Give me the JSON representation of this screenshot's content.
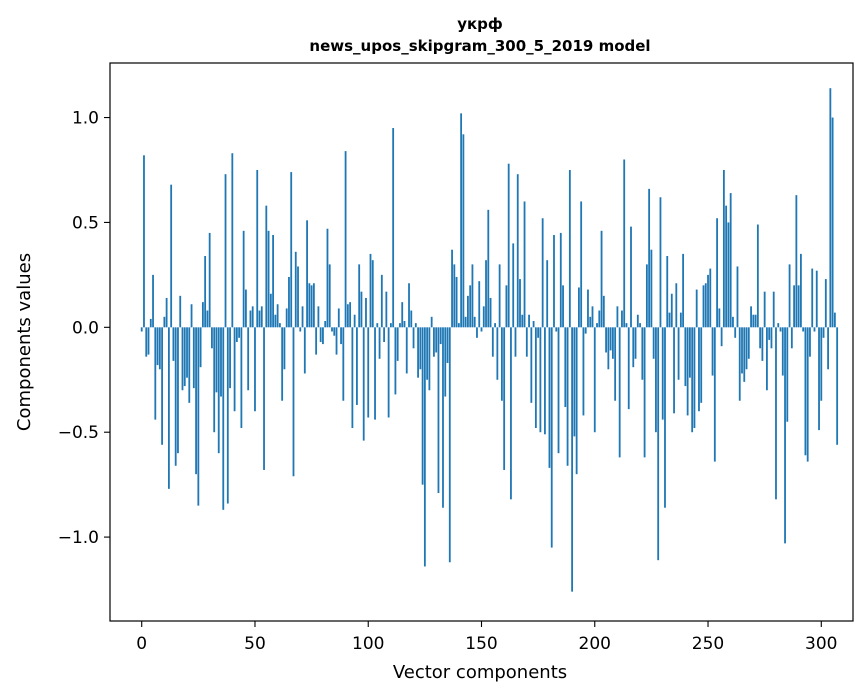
{
  "chart_data": {
    "type": "bar",
    "title": "укрф",
    "subtitle": "news_upos_skipgram_300_5_2019 model",
    "xlabel": "Vector components",
    "ylabel": "Components values",
    "xlim": [
      -14,
      314
    ],
    "ylim": [
      -1.4,
      1.26
    ],
    "xticks": [
      0,
      50,
      100,
      150,
      200,
      250,
      300
    ],
    "xtick_labels": [
      "0",
      "50",
      "100",
      "150",
      "200",
      "250",
      "300"
    ],
    "yticks": [
      -1.0,
      -0.5,
      0.0,
      0.5,
      1.0
    ],
    "ytick_labels": [
      "−1.0",
      "−0.5",
      "0.0",
      "0.5",
      "1.0"
    ],
    "bar_color": "#1f77b4",
    "values": [
      -0.02,
      0.82,
      -0.14,
      -0.13,
      0.04,
      0.25,
      -0.44,
      -0.18,
      -0.2,
      -0.56,
      0.05,
      0.14,
      -0.77,
      0.68,
      -0.16,
      -0.66,
      -0.6,
      0.15,
      -0.3,
      -0.28,
      -0.24,
      -0.36,
      0.11,
      -0.29,
      -0.7,
      -0.85,
      -0.19,
      0.12,
      0.34,
      0.08,
      0.45,
      -0.1,
      -0.5,
      -0.31,
      -0.6,
      -0.33,
      -0.87,
      0.73,
      -0.84,
      -0.29,
      0.83,
      -0.4,
      -0.07,
      -0.05,
      -0.48,
      0.46,
      0.18,
      -0.3,
      0.08,
      0.1,
      -0.4,
      0.75,
      0.08,
      0.1,
      -0.68,
      0.58,
      0.46,
      0.16,
      0.44,
      0.06,
      0.11,
      0.02,
      -0.35,
      -0.2,
      0.09,
      0.24,
      0.74,
      -0.71,
      0.36,
      0.29,
      -0.02,
      0.1,
      -0.22,
      0.51,
      0.21,
      0.2,
      0.21,
      -0.13,
      0.1,
      -0.07,
      -0.08,
      0.03,
      0.47,
      0.3,
      -0.02,
      -0.04,
      -0.13,
      0.09,
      -0.08,
      -0.35,
      0.84,
      0.11,
      0.12,
      -0.48,
      0.06,
      -0.37,
      0.3,
      0.17,
      -0.54,
      0.14,
      -0.43,
      0.35,
      0.32,
      -0.44,
      0.02,
      -0.15,
      0.25,
      -0.07,
      0.17,
      -0.43,
      0.02,
      0.95,
      -0.32,
      -0.16,
      0.02,
      0.12,
      0.03,
      -0.22,
      0.21,
      0.08,
      -0.1,
      0.02,
      -0.24,
      -0.2,
      -0.75,
      -1.14,
      -0.25,
      -0.3,
      0.05,
      -0.14,
      -0.12,
      -0.79,
      -0.08,
      -0.86,
      -0.33,
      -0.17,
      -1.12,
      0.37,
      0.3,
      0.24,
      0.02,
      1.02,
      0.92,
      0.05,
      0.15,
      0.2,
      0.3,
      0.05,
      -0.05,
      0.22,
      -0.02,
      0.1,
      0.32,
      0.56,
      0.14,
      -0.14,
      0.02,
      -0.25,
      0.3,
      -0.35,
      -0.68,
      0.2,
      0.78,
      -0.82,
      0.4,
      -0.14,
      0.73,
      0.23,
      0.06,
      0.6,
      -0.14,
      0.06,
      -0.36,
      0.03,
      -0.48,
      -0.05,
      -0.5,
      0.52,
      -0.51,
      0.32,
      -0.67,
      -1.05,
      0.44,
      -0.02,
      -0.6,
      0.45,
      0.2,
      -0.38,
      -0.66,
      0.75,
      -1.26,
      -0.52,
      -0.7,
      0.19,
      0.6,
      -0.42,
      -0.03,
      0.18,
      0.05,
      0.1,
      -0.5,
      0.02,
      0.08,
      0.46,
      0.15,
      -0.12,
      -0.2,
      -0.11,
      -0.15,
      -0.35,
      0.1,
      -0.62,
      0.08,
      0.8,
      0.02,
      -0.39,
      0.48,
      -0.19,
      -0.15,
      0.06,
      0.02,
      -0.25,
      -0.62,
      0.3,
      0.66,
      0.37,
      -0.15,
      -0.5,
      -1.11,
      0.62,
      -0.44,
      -0.86,
      0.34,
      0.07,
      0.16,
      -0.41,
      0.21,
      -0.25,
      0.07,
      0.35,
      -0.28,
      -0.42,
      -0.24,
      -0.5,
      -0.48,
      0.18,
      -0.4,
      -0.36,
      0.2,
      0.21,
      0.25,
      0.28,
      -0.23,
      -0.64,
      0.52,
      0.09,
      -0.09,
      0.75,
      0.58,
      0.5,
      0.64,
      0.05,
      -0.05,
      0.29,
      -0.35,
      -0.22,
      -0.26,
      -0.2,
      -0.15,
      0.1,
      0.06,
      0.06,
      0.49,
      -0.1,
      -0.16,
      0.17,
      -0.3,
      -0.06,
      -0.1,
      0.17,
      -0.82,
      0.02,
      -0.02,
      -0.23,
      -1.03,
      -0.45,
      0.3,
      -0.1,
      0.2,
      0.63,
      0.2,
      0.35,
      -0.02,
      -0.61,
      -0.64,
      -0.14,
      0.28,
      -0.02,
      0.27,
      -0.49,
      -0.35,
      -0.05,
      0.23,
      -0.2,
      1.14,
      1.0,
      0.07,
      -0.56
    ]
  }
}
